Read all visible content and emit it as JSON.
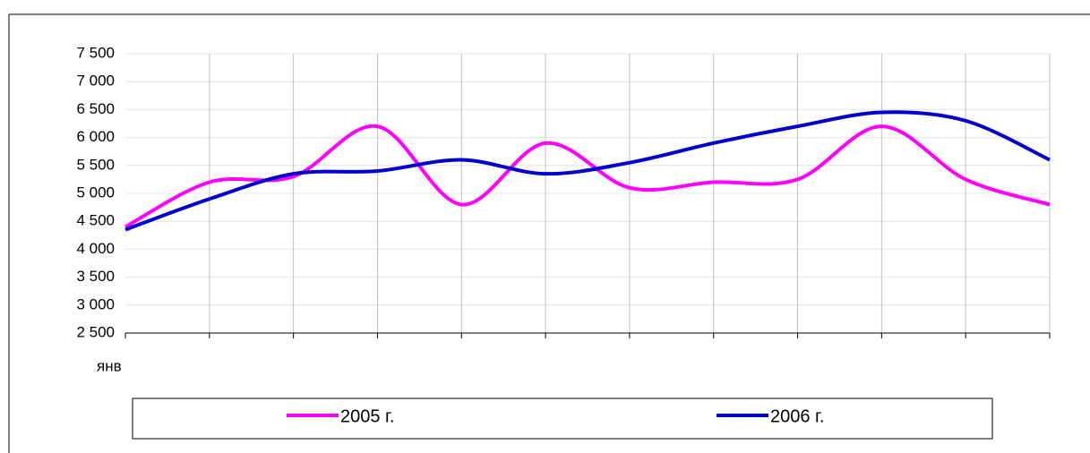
{
  "chart_data": {
    "type": "line",
    "categories": [
      "янв",
      null,
      null,
      null,
      null,
      null,
      null,
      null,
      null,
      null,
      null,
      null
    ],
    "series": [
      {
        "name": "2005 г.",
        "color": "#ff00ff",
        "values": [
          4400,
          5200,
          5300,
          6200,
          4800,
          5900,
          5100,
          5200,
          5250,
          6200,
          5250,
          4800
        ]
      },
      {
        "name": "2006 г.",
        "color": "#0000cc",
        "values": [
          4350,
          4900,
          5350,
          5400,
          5600,
          5350,
          5550,
          5900,
          6200,
          6450,
          6300,
          5600
        ]
      }
    ],
    "ylim": [
      2500,
      7500
    ],
    "yticks": [
      {
        "value": 2500,
        "label": "2 500"
      },
      {
        "value": 3000,
        "label": "3 000"
      },
      {
        "value": 3500,
        "label": "3 500"
      },
      {
        "value": 4000,
        "label": "4 000"
      },
      {
        "value": 4500,
        "label": "4 500"
      },
      {
        "value": 5000,
        "label": "5 000"
      },
      {
        "value": 5500,
        "label": "5 500"
      },
      {
        "value": 6000,
        "label": "6 000"
      },
      {
        "value": 6500,
        "label": "6 500"
      },
      {
        "value": 7000,
        "label": "7 000"
      },
      {
        "value": 7500,
        "label": "7 500"
      }
    ],
    "grid": true,
    "smooth": true
  }
}
